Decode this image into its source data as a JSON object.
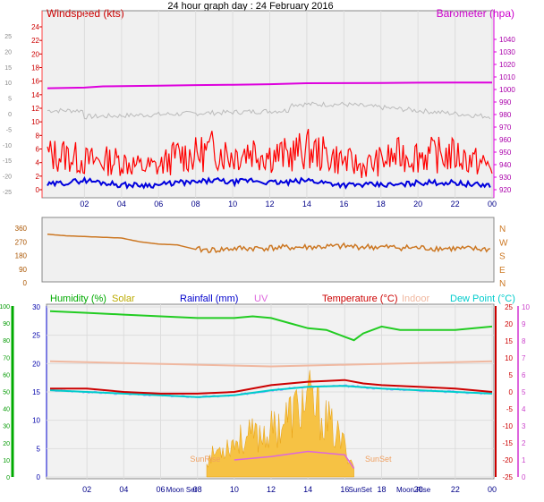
{
  "page": {
    "title": "24 hour graph day : 24 February 2016"
  },
  "chart_data": [
    {
      "type": "line",
      "id": "wind-baro",
      "legend": {
        "left": "Windspeed (kts)",
        "right": "Barometer (hpa)"
      },
      "colors": {
        "wind": "#ff0000",
        "gust_fill": "#ff0000",
        "avg": "#0000dd",
        "baro": "#dd00dd",
        "temp_trace": "#bbbbbb"
      },
      "x_ticks": [
        "02",
        "04",
        "06",
        "08",
        "10",
        "12",
        "14",
        "16",
        "18",
        "20",
        "22",
        "00"
      ],
      "left_ticks": [
        25,
        20,
        15,
        10,
        5,
        0,
        -5,
        -10,
        -15,
        -20,
        -25
      ],
      "left_ticks_red": [
        24,
        22,
        20,
        18,
        16,
        14,
        12,
        10,
        8,
        6,
        4,
        2,
        0
      ],
      "right_ticks": [
        1040,
        1030,
        1020,
        1010,
        1000,
        990,
        980,
        970,
        960,
        950,
        940,
        930,
        920
      ],
      "series": [
        {
          "name": "Barometer (hpa)",
          "x": [
            0,
            2,
            3,
            6,
            8,
            10,
            12,
            14,
            18,
            20,
            24
          ],
          "values": [
            1001,
            1001.5,
            1002.5,
            1003,
            1003.5,
            1003.8,
            1004.2,
            1005,
            1005.2,
            1005.4,
            1005.6
          ]
        },
        {
          "name": "Windspeed (kts)",
          "x": [
            0,
            1,
            2,
            3,
            4,
            5,
            6,
            7,
            8,
            9,
            10,
            11,
            12,
            13,
            14,
            15,
            16,
            17,
            18,
            19,
            20,
            21,
            22,
            23,
            24
          ],
          "values": [
            2,
            3,
            4,
            3,
            2,
            2,
            2,
            3,
            3,
            4,
            3,
            4,
            3,
            3,
            4,
            3,
            2,
            2,
            2,
            2,
            3,
            3,
            3,
            2,
            2
          ]
        },
        {
          "name": "gust",
          "x": [
            0,
            1,
            2,
            3,
            4,
            5,
            6,
            7,
            8,
            9,
            10,
            11,
            12,
            13,
            14,
            15,
            16,
            17,
            18,
            19,
            20,
            21,
            22,
            23,
            24
          ],
          "values": [
            6,
            6,
            5,
            5,
            5,
            4,
            4,
            6,
            6,
            7,
            6,
            7,
            6,
            6,
            7,
            6,
            5,
            4,
            5,
            6,
            6,
            6,
            6,
            5,
            4
          ]
        }
      ]
    },
    {
      "type": "line",
      "id": "wind-direction",
      "left_ticks": [
        360,
        270,
        180,
        90,
        0
      ],
      "right_ticks": [
        "N",
        "W",
        "S",
        "E",
        "N"
      ],
      "color": "#cc7722",
      "series": [
        {
          "name": "Wind direction",
          "x": [
            0,
            1,
            2,
            3,
            4,
            5,
            6,
            7,
            8,
            9,
            10,
            12,
            14,
            16,
            18,
            20,
            22,
            24
          ],
          "values": [
            320,
            310,
            305,
            300,
            295,
            270,
            255,
            250,
            220,
            215,
            225,
            230,
            235,
            240,
            235,
            230,
            225,
            220
          ]
        }
      ]
    },
    {
      "type": "line",
      "id": "hum-temp",
      "legend": [
        {
          "label": "Humidity (%)",
          "color": "#00aa00"
        },
        {
          "label": "Solar",
          "color": "#bbaa00"
        },
        {
          "label": "Rainfall (mm)",
          "color": "#0000cc"
        },
        {
          "label": "UV",
          "color": "#dd66dd"
        },
        {
          "label": "Temperature (°C)",
          "color": "#cc0000"
        },
        {
          "label": "Indoor",
          "color": "#f0b8a0"
        },
        {
          "label": "Dew Point (°C)",
          "color": "#00cccc"
        }
      ],
      "x_ticks": [
        "02",
        "04",
        "06",
        "08",
        "10",
        "12",
        "14",
        "16",
        "18",
        "20",
        "22",
        "00"
      ],
      "humidity_ticks": [
        100,
        90,
        80,
        70,
        60,
        50,
        40,
        30,
        20,
        10,
        0
      ],
      "rain_ticks": [
        30,
        25,
        20,
        15,
        10,
        5,
        0
      ],
      "temp_ticks": [
        25,
        20,
        15,
        10,
        5,
        0,
        -5,
        -10,
        -15,
        -20,
        -25
      ],
      "uv_ticks": [
        10,
        9,
        8,
        7,
        6,
        5,
        4,
        3,
        2,
        1,
        0
      ],
      "events": [
        "SunRise",
        "SunSet",
        "Moon Set",
        "Moon Rise"
      ],
      "series": [
        {
          "name": "Humidity (%)",
          "x": [
            0,
            2,
            4,
            6,
            8,
            10,
            11,
            12,
            13,
            14,
            15,
            16,
            16.5,
            17,
            18,
            19,
            20,
            22,
            24
          ],
          "values": [
            97,
            96,
            95,
            94,
            93,
            93,
            94,
            93,
            90,
            87,
            86,
            82,
            80,
            84,
            88,
            86,
            86,
            86,
            88
          ]
        },
        {
          "name": "Temperature (°C)",
          "x": [
            0,
            2,
            4,
            6,
            8,
            10,
            12,
            14,
            15,
            16,
            17,
            18,
            20,
            22,
            24
          ],
          "values": [
            1,
            1,
            0,
            -0.5,
            -0.5,
            0,
            2,
            3,
            3.2,
            3.5,
            2.5,
            2,
            1.5,
            1,
            0
          ]
        },
        {
          "name": "Dew Point (°C)",
          "x": [
            0,
            2,
            4,
            6,
            8,
            10,
            12,
            14,
            16,
            18,
            20,
            22,
            24
          ],
          "values": [
            0.5,
            0,
            -0.5,
            -1,
            -1.5,
            -1,
            0.5,
            1.5,
            1.8,
            1,
            0.5,
            0,
            -0.5
          ]
        },
        {
          "name": "Indoor",
          "x": [
            0,
            4,
            8,
            12,
            16,
            20,
            24
          ],
          "values": [
            9,
            8.5,
            8,
            7.5,
            8,
            8.5,
            9
          ]
        },
        {
          "name": "Solar",
          "x": [
            8.5,
            9,
            10,
            11,
            12,
            13,
            14,
            15,
            16,
            16.5
          ],
          "values": [
            3,
            5,
            7,
            8,
            9,
            12,
            15,
            11,
            6,
            2
          ]
        },
        {
          "name": "UV",
          "x": [
            10,
            12,
            14,
            16,
            16.5
          ],
          "values": [
            1,
            1.2,
            1.5,
            1.3,
            0.5
          ]
        }
      ]
    }
  ]
}
